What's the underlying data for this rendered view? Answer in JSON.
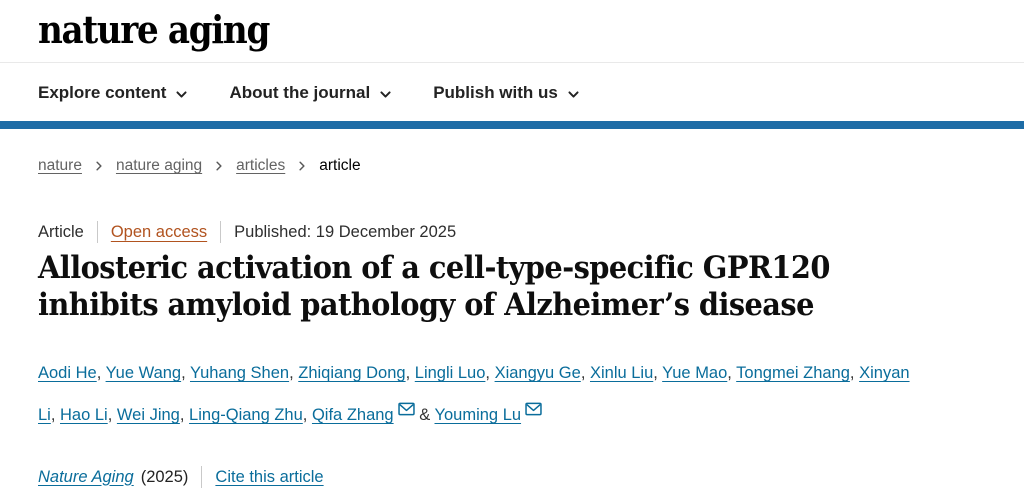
{
  "header": {
    "logo": "nature aging",
    "nav": [
      {
        "label": "Explore content"
      },
      {
        "label": "About the journal"
      },
      {
        "label": "Publish with us"
      }
    ]
  },
  "breadcrumb": {
    "items": [
      {
        "label": "nature",
        "current": false
      },
      {
        "label": "nature aging",
        "current": false
      },
      {
        "label": "articles",
        "current": false
      },
      {
        "label": "article",
        "current": true
      }
    ]
  },
  "article": {
    "type_label": "Article",
    "access_label": "Open access",
    "published": "Published: 19 December 2025",
    "title": "Allosteric activation of a cell-type-specific GPR120 inhibits amyloid pathology of Alzheimer’s disease",
    "authors": [
      {
        "name": "Aodi He",
        "email": false
      },
      {
        "name": "Yue Wang",
        "email": false
      },
      {
        "name": "Yuhang Shen",
        "email": false
      },
      {
        "name": "Zhiqiang Dong",
        "email": false
      },
      {
        "name": "Lingli Luo",
        "email": false
      },
      {
        "name": "Xiangyu Ge",
        "email": false
      },
      {
        "name": "Xinlu Liu",
        "email": false
      },
      {
        "name": "Yue Mao",
        "email": false
      },
      {
        "name": "Tongmei Zhang",
        "email": false
      },
      {
        "name": "Xinyan Li",
        "email": false
      },
      {
        "name": "Hao Li",
        "email": false
      },
      {
        "name": "Wei Jing",
        "email": false
      },
      {
        "name": "Ling-Qiang Zhu",
        "email": false
      },
      {
        "name": "Qifa Zhang",
        "email": true
      },
      {
        "name": "Youming Lu",
        "email": true
      }
    ]
  },
  "citation": {
    "journal": "Nature Aging",
    "year": "(2025)",
    "cite_label": "Cite this article"
  },
  "icons": {
    "chevron_down": "∨",
    "chevron_right": "›",
    "email": "✉"
  },
  "colors": {
    "banner_blue": "#1e6ca6",
    "link_teal": "#0a6d9b",
    "open_access_orange": "#b1531f"
  }
}
